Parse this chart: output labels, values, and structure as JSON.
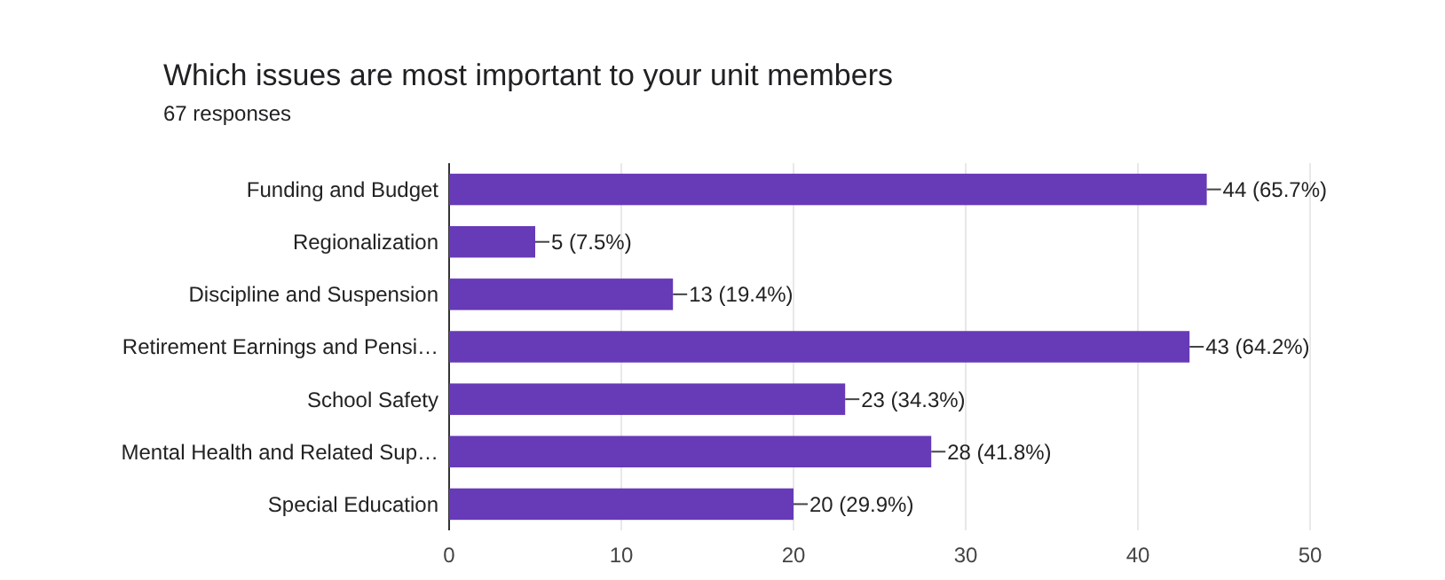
{
  "chart_data": {
    "type": "bar",
    "orientation": "horizontal",
    "title": "Which issues are most important to your unit members",
    "subtitle": "67 responses",
    "categories": [
      "Funding and Budget",
      "Regionalization",
      "Discipline and Suspension",
      "Retirement Earnings and Pensi…",
      "School Safety",
      "Mental Health and Related Sup…",
      "Special Education"
    ],
    "values": [
      44,
      5,
      13,
      43,
      23,
      28,
      20
    ],
    "value_labels": [
      "44 (65.7%)",
      "5 (7.5%)",
      "13 (19.4%)",
      "43 (64.2%)",
      "23 (34.3%)",
      "28 (41.8%)",
      "20 (29.9%)"
    ],
    "color": "#673ab7",
    "xlim": [
      0,
      50
    ],
    "xticks": [
      0,
      10,
      20,
      30,
      40,
      50
    ],
    "grid": "x"
  }
}
